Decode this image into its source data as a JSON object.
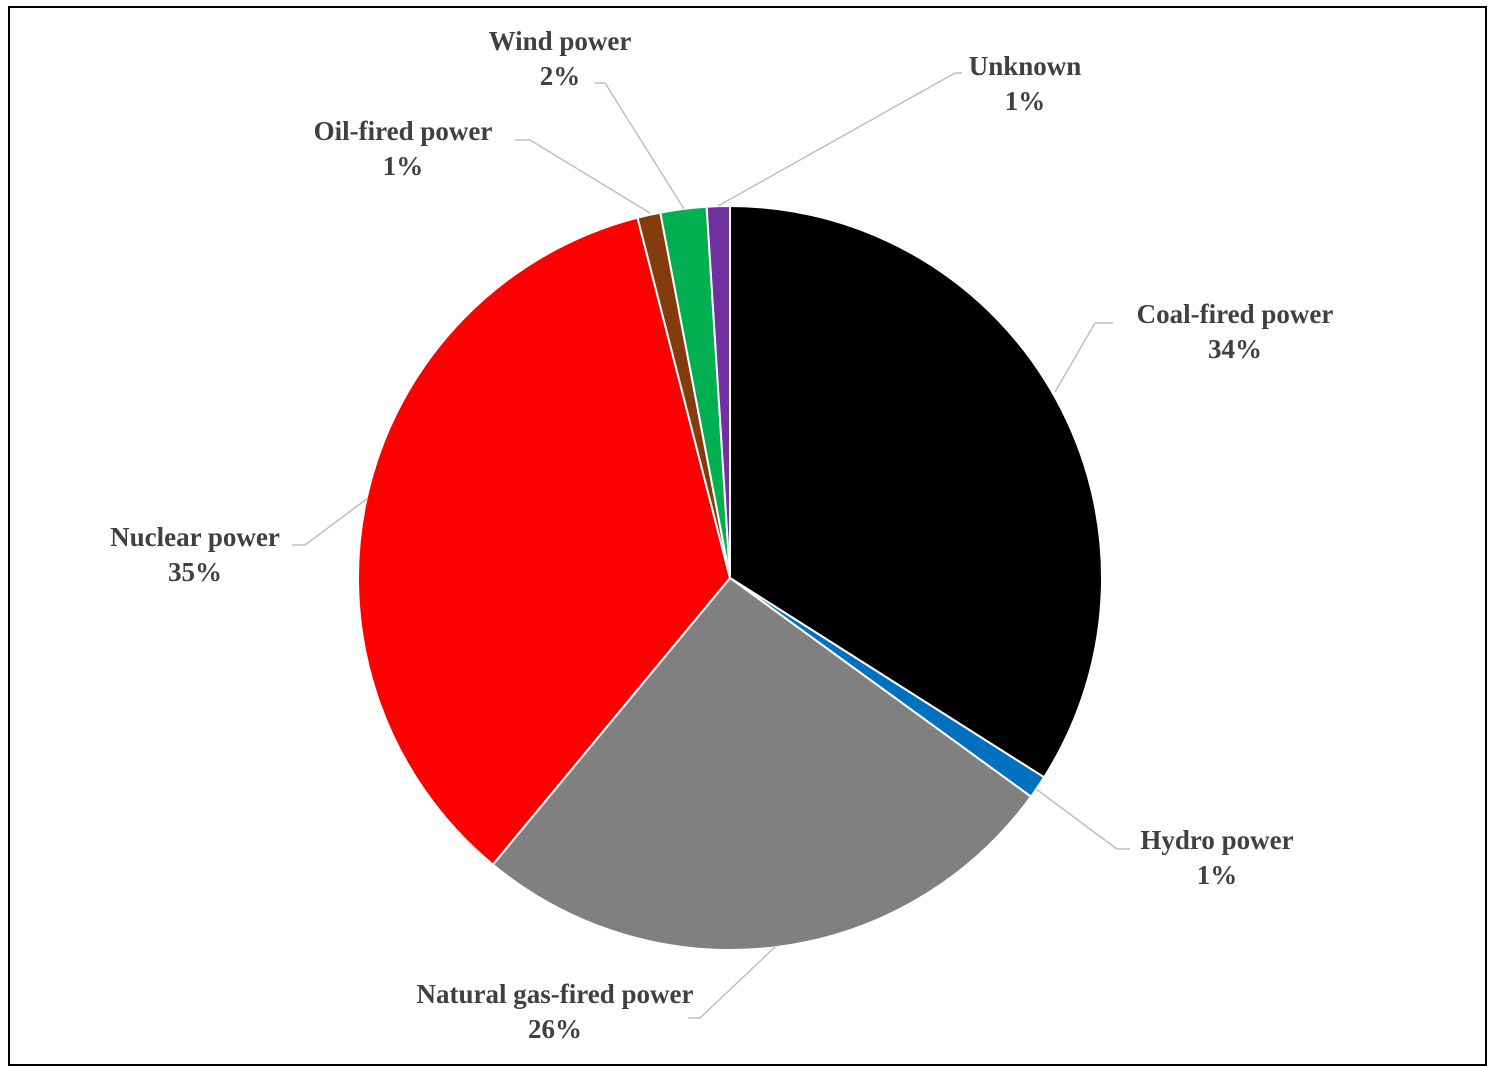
{
  "chart_data": {
    "type": "pie",
    "title": "",
    "start_angle_deg": 0,
    "direction": "clockwise",
    "slices": [
      {
        "name": "Coal-fired power",
        "value": 34,
        "label": "34%",
        "color": "#000000"
      },
      {
        "name": "Hydro power",
        "value": 1,
        "label": "1%",
        "color": "#0070C0"
      },
      {
        "name": "Natural gas-fired power",
        "value": 26,
        "label": "26%",
        "color": "#808080"
      },
      {
        "name": "Nuclear power",
        "value": 35,
        "label": "35%",
        "color": "#FF0000"
      },
      {
        "name": "Oil-fired power",
        "value": 1,
        "label": "1%",
        "color": "#843C0C"
      },
      {
        "name": "Wind power",
        "value": 2,
        "label": "2%",
        "color": "#00B050"
      },
      {
        "name": "Unknown",
        "value": 1,
        "label": "1%",
        "color": "#7030A0"
      }
    ],
    "legend": "none",
    "data_labels": "outside-with-leader-lines"
  }
}
